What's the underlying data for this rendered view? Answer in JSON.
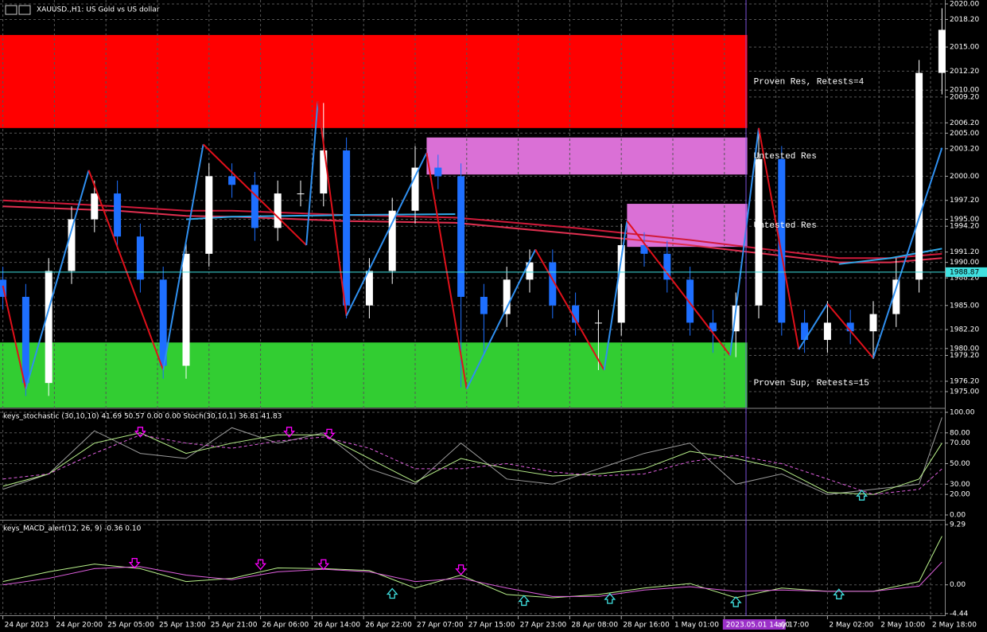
{
  "header": {
    "title": "XAUUSD.,H1:  US Gold vs US dollar"
  },
  "chart_data": [
    {
      "type": "candlestick",
      "xlim": [
        -0.5,
        164.5
      ],
      "ylim": [
        1973.15,
        2020.46
      ],
      "xticks": [
        {
          "value": 0,
          "label": "24 Apr 2023"
        },
        {
          "value": 9,
          "label": "24 Apr 20:00"
        },
        {
          "value": 18,
          "label": "25 Apr 05:00"
        },
        {
          "value": 27,
          "label": "25 Apr 13:00"
        },
        {
          "value": 36,
          "label": "25 Apr 21:00"
        },
        {
          "value": 45,
          "label": "26 Apr 06:00"
        },
        {
          "value": 54,
          "label": "26 Apr 14:00"
        },
        {
          "value": 63,
          "label": "26 Apr 22:00"
        },
        {
          "value": 72,
          "label": "27 Apr 07:00"
        },
        {
          "value": 81,
          "label": "27 Apr 15:00"
        },
        {
          "value": 90,
          "label": "27 Apr 23:00"
        },
        {
          "value": 99,
          "label": "28 Apr 08:00"
        },
        {
          "value": 108,
          "label": "28 Apr 16:00"
        },
        {
          "value": 117,
          "label": "1 May 01:00"
        },
        {
          "value": 126,
          "label": "2023.05.01 14:00"
        },
        {
          "value": 135,
          "label": "ay 17:00"
        },
        {
          "value": 144,
          "label": "2 May 02:00"
        },
        {
          "value": 153,
          "label": "2 May 10:00"
        },
        {
          "value": 162,
          "label": "2 May 18:00"
        }
      ],
      "yticks": [
        {
          "value": 2020,
          "label": "2020.00"
        },
        {
          "value": 2018.2,
          "label": "2018.20"
        },
        {
          "value": 2015,
          "label": "2015.00"
        },
        {
          "value": 2012.2,
          "label": "2012.20"
        },
        {
          "value": 2010,
          "label": "2010.00"
        },
        {
          "value": 2009.2,
          "label": "2009.20"
        },
        {
          "value": 2006.2,
          "label": "2006.20"
        },
        {
          "value": 2005,
          "label": "2005.00"
        },
        {
          "value": 2003.2,
          "label": "2003.20"
        },
        {
          "value": 2000,
          "label": "2000.00"
        },
        {
          "value": 1997.2,
          "label": "1997.20"
        },
        {
          "value": 1995,
          "label": "1995.00"
        },
        {
          "value": 1994.2,
          "label": "1994.20"
        },
        {
          "value": 1991.2,
          "label": "1991.20"
        },
        {
          "value": 1990,
          "label": "1990.00"
        },
        {
          "value": 1988.2,
          "label": "1988.20"
        },
        {
          "value": 1985,
          "label": "1985.00"
        },
        {
          "value": 1982.2,
          "label": "1982.20"
        },
        {
          "value": 1980,
          "label": "1980.00"
        },
        {
          "value": 1979.2,
          "label": "1979.20"
        },
        {
          "value": 1976.2,
          "label": "1976.20"
        },
        {
          "value": 1975,
          "label": "1975.00"
        }
      ],
      "grid": true,
      "current_price": {
        "value": 1988.87,
        "label": "1988.87",
        "color": "#40e0e0"
      },
      "zones": [
        {
          "label": "Proven Res, Retests=4",
          "x": [
            -0.5,
            130
          ],
          "range": [
            2005.6,
            2016.4
          ],
          "color": "#ff0000"
        },
        {
          "label": "Untested Res",
          "x": [
            74,
            130
          ],
          "range": [
            2000.2,
            2004.5
          ],
          "color": "#da70d6"
        },
        {
          "label": "Untested Res",
          "x": [
            109,
            130
          ],
          "range": [
            1991.8,
            1996.8
          ],
          "color": "#da70d6"
        },
        {
          "label": "Proven Sup, Retests=15",
          "x": [
            -0.5,
            130
          ],
          "range": [
            1973.15,
            1980.7
          ],
          "color": "#32cd32"
        }
      ],
      "x": [
        0,
        4,
        8,
        12,
        16,
        20,
        24,
        28,
        32,
        36,
        40,
        44,
        48,
        52,
        56,
        60,
        64,
        68,
        72,
        76,
        80,
        84,
        88,
        92,
        96,
        100,
        104,
        108,
        112,
        116,
        120,
        124,
        128,
        132,
        136,
        140,
        144,
        148,
        152,
        156,
        160,
        164
      ],
      "open": [
        1988,
        1986,
        1976,
        1989,
        1995,
        1998,
        1993,
        1988,
        1978,
        1991,
        2000,
        1999,
        1994,
        1998,
        1998,
        2003,
        1985,
        1989,
        1996,
        2001,
        2000,
        1986,
        1984,
        1988,
        1990,
        1985,
        1983,
        1983,
        1992,
        1991,
        1988,
        1983,
        1982,
        1985,
        2002,
        1983,
        1981,
        1983,
        1982,
        1984,
        1988,
        2012
      ],
      "high": [
        1989.5,
        1987.5,
        1990.5,
        1996.5,
        1999.5,
        1999.5,
        1994.5,
        1989.5,
        1992.5,
        2001.5,
        2001.5,
        2000.5,
        1999.5,
        1999.5,
        2008.5,
        2004.5,
        1990.5,
        1997.5,
        2003.5,
        2002.5,
        2001.5,
        1987.5,
        1989.5,
        1991.5,
        1991.5,
        1986.5,
        1984.5,
        1994.5,
        1993.5,
        1992.5,
        1989.5,
        1984.5,
        1986.5,
        2005.5,
        2003.5,
        1984.5,
        1985.5,
        1984.5,
        1985.5,
        1990.5,
        2013.5,
        2019.5
      ],
      "low": [
        1984.5,
        1974.5,
        1974.5,
        1987.5,
        1993.5,
        1991.5,
        1986.5,
        1976.5,
        1976.5,
        1989.5,
        1997.5,
        1992.5,
        1992.5,
        1996.5,
        1996.5,
        1983.5,
        1983.5,
        1987.5,
        1994.5,
        1998.5,
        1975.5,
        1979.5,
        1982.5,
        1986.5,
        1983.5,
        1981.5,
        1977.5,
        1981.5,
        1989.5,
        1986.5,
        1981.5,
        1979.5,
        1979,
        1983.5,
        1981.5,
        1979.5,
        1979.5,
        1980.5,
        1978.8,
        1982.5,
        1986.5,
        2009.5
      ],
      "close": [
        1986,
        1976,
        1989,
        1995,
        1998,
        1993,
        1988,
        1978,
        1991,
        2000,
        1999,
        1994,
        1998,
        1998,
        2003,
        1985,
        1989,
        1996,
        2001,
        2000,
        1986,
        1984,
        1988,
        1990,
        1985,
        1983,
        1983,
        1992,
        1991,
        1988,
        1983,
        1982,
        1985,
        2002,
        1983,
        1981,
        1983,
        1982,
        1984,
        1988,
        2012,
        2017
      ],
      "up_color": "#ffffff",
      "down_color": "#1e6fff",
      "zigzag": {
        "x": [
          0,
          4,
          15,
          28,
          35,
          53,
          55,
          60,
          74,
          81,
          93,
          105,
          109,
          127,
          132,
          139,
          144,
          152,
          164
        ],
        "values": [
          1987.3,
          1975.3,
          2000.7,
          1977.5,
          2003.7,
          1992,
          2008.7,
          1983.8,
          2002.7,
          1975.3,
          1991.5,
          1977.5,
          1994.8,
          1979.2,
          2005.6,
          1979.9,
          1985.2,
          1978.9,
          2003.3
        ],
        "up_color": "#2f8fef",
        "down_color": "#e0101a"
      },
      "lines": {
        "x": [
          0,
          20,
          32,
          40,
          60,
          79,
          100,
          120,
          146,
          155,
          164
        ],
        "series": [
          {
            "color": "#d01a3a",
            "values": [
              1997.2,
              1996.5,
              1996,
              1996,
              1995.5,
              1995.2,
              1994,
              1992.6,
              1990.5,
              1990.5,
              1991
            ]
          },
          {
            "color": "#e03050",
            "values": [
              1996.5,
              1996,
              1995.4,
              1995.3,
              1994.8,
              1994.6,
              1993.3,
              1992,
              1990,
              1990,
              1990.5
            ]
          },
          {
            "color": "#30a8e8",
            "values": [
              null,
              null,
              1995,
              1995.3,
              1995.5,
              1995.6,
              null,
              null,
              1989.8,
              1990.5,
              1991.6
            ]
          }
        ]
      }
    },
    {
      "type": "line",
      "title": "keys_stochastic (30,10,10) 41.69 50.57 0.00 0.00 Stoch(30,10,1) 36.81 41.83",
      "xlim": [
        -0.5,
        164.5
      ],
      "ylim": [
        -3.9,
        103.1
      ],
      "yticks": [
        {
          "value": 100,
          "label": "100.00"
        },
        {
          "value": 80,
          "label": "80.00"
        },
        {
          "value": 70,
          "label": "70.00"
        },
        {
          "value": 50,
          "label": "50.00"
        },
        {
          "value": 30,
          "label": "30.00"
        },
        {
          "value": 20,
          "label": "20.00"
        },
        {
          "value": 0,
          "label": "0.00"
        }
      ],
      "x": [
        0,
        8,
        16,
        24,
        32,
        40,
        48,
        56,
        64,
        72,
        80,
        88,
        96,
        104,
        112,
        120,
        128,
        136,
        144,
        152,
        160,
        164
      ],
      "series": [
        {
          "color": "#9a9a9a",
          "dashed": false,
          "values": [
            25,
            40,
            82,
            60,
            55,
            85,
            70,
            80,
            45,
            30,
            70,
            35,
            30,
            45,
            60,
            70,
            30,
            40,
            20,
            25,
            30,
            95
          ]
        },
        {
          "color": "#b8f08a",
          "dashed": false,
          "values": [
            28,
            40,
            70,
            80,
            60,
            70,
            78,
            78,
            55,
            32,
            55,
            45,
            38,
            40,
            45,
            62,
            55,
            45,
            22,
            20,
            35,
            70
          ]
        },
        {
          "color": "#e060e0",
          "dashed": true,
          "values": [
            35,
            40,
            60,
            78,
            70,
            65,
            72,
            76,
            65,
            45,
            45,
            50,
            42,
            38,
            40,
            52,
            58,
            50,
            35,
            20,
            25,
            45
          ]
        }
      ],
      "down_signals": {
        "x": [
          24,
          50,
          57
        ],
        "values": [
          80,
          80,
          78
        ],
        "color": "#ff00ff"
      },
      "up_signals": {
        "x": [
          150
        ],
        "values": [
          20
        ],
        "color": "#40e0e0"
      }
    },
    {
      "type": "line",
      "title": "keys_MACD_alert(12, 26, 9) -0.36 0.10",
      "xlim": [
        -0.5,
        164.5
      ],
      "ylim": [
        -4.58,
        9.79
      ],
      "yticks": [
        9.29,
        {
          "value": 0,
          "label": "0.00"
        },
        -4.44
      ],
      "x": [
        0,
        8,
        16,
        24,
        32,
        40,
        48,
        56,
        64,
        72,
        80,
        88,
        96,
        104,
        112,
        120,
        128,
        136,
        144,
        152,
        160,
        164
      ],
      "series": [
        {
          "color": "#b8f08a",
          "dashed": false,
          "values": [
            0.5,
            2,
            3.2,
            2.5,
            0.5,
            1,
            2.6,
            2.5,
            2.2,
            -0.5,
            1.5,
            -1.5,
            -2,
            -1.5,
            -0.5,
            0.2,
            -2,
            -0.5,
            -1,
            -1,
            0.5,
            7.5
          ]
        },
        {
          "color": "#e060e0",
          "dashed": false,
          "values": [
            0,
            1,
            2.5,
            2.8,
            1.5,
            0.8,
            2,
            2.4,
            2,
            0.5,
            1,
            -0.5,
            -1.8,
            -1.8,
            -0.8,
            -0.3,
            -1,
            -0.8,
            -1,
            -1,
            -0.2,
            3.5
          ]
        }
      ],
      "down_signals": {
        "x": [
          23,
          45,
          56,
          80
        ],
        "values": [
          3.2,
          3,
          3,
          2.2
        ],
        "color": "#ff00ff"
      },
      "up_signals": {
        "x": [
          68,
          91,
          106,
          128,
          146
        ],
        "values": [
          -1.2,
          -2.3,
          -2,
          -2.5,
          -1.3
        ],
        "color": "#40e0e0"
      }
    }
  ]
}
